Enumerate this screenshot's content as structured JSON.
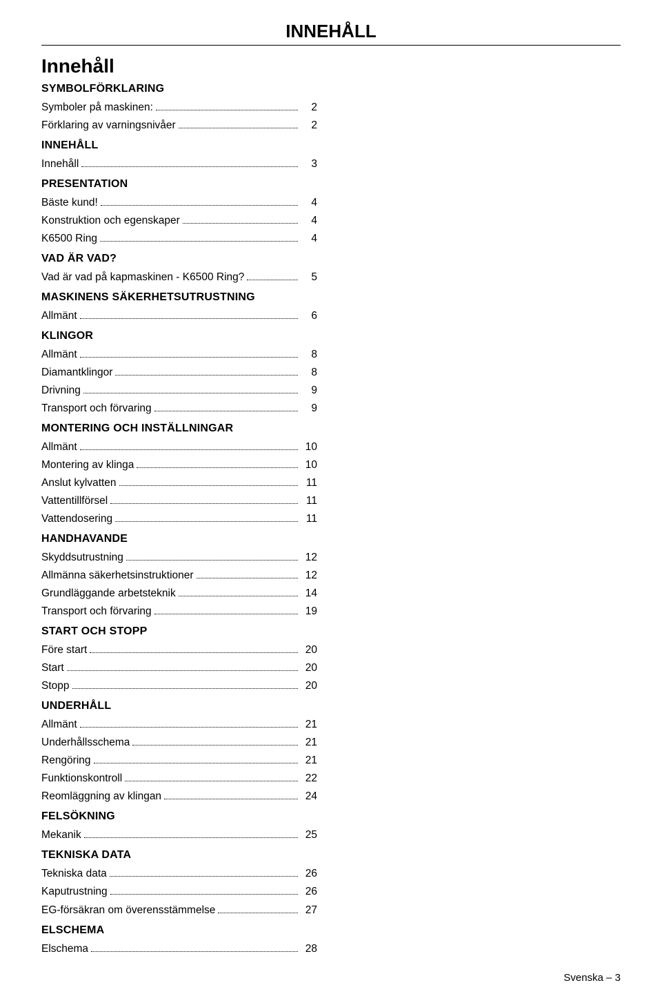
{
  "page_title": "INNEHÅLL",
  "main_heading": "Innehåll",
  "footer": {
    "text": "Svenska",
    "page": "3",
    "separator": "–"
  },
  "colors": {
    "text": "#000000",
    "background": "#ffffff",
    "rule": "#000000"
  },
  "typography": {
    "title_fontsize": 26,
    "main_heading_fontsize": 28,
    "section_fontsize": 16,
    "entry_fontsize": 15.5,
    "footer_fontsize": 15,
    "font_family": "Arial"
  },
  "sections": [
    {
      "heading": "SYMBOLFÖRKLARING",
      "entries": [
        {
          "label": "Symboler på maskinen:",
          "page": "2"
        },
        {
          "label": "Förklaring av varningsnivåer",
          "page": "2"
        }
      ]
    },
    {
      "heading": "INNEHÅLL",
      "entries": [
        {
          "label": "Innehåll",
          "page": "3"
        }
      ]
    },
    {
      "heading": "PRESENTATION",
      "entries": [
        {
          "label": "Bäste kund!",
          "page": "4"
        },
        {
          "label": "Konstruktion och egenskaper",
          "page": "4"
        },
        {
          "label": "K6500 Ring",
          "page": "4"
        }
      ]
    },
    {
      "heading": "VAD ÄR VAD?",
      "entries": [
        {
          "label": "Vad är vad på kapmaskinen - K6500 Ring?",
          "page": "5"
        }
      ]
    },
    {
      "heading": "MASKINENS SÄKERHETSUTRUSTNING",
      "entries": [
        {
          "label": "Allmänt",
          "page": "6"
        }
      ]
    },
    {
      "heading": "KLINGOR",
      "entries": [
        {
          "label": "Allmänt",
          "page": "8"
        },
        {
          "label": "Diamantklingor",
          "page": "8"
        },
        {
          "label": "Drivning",
          "page": "9"
        },
        {
          "label": "Transport och förvaring",
          "page": "9"
        }
      ]
    },
    {
      "heading": "MONTERING OCH INSTÄLLNINGAR",
      "entries": [
        {
          "label": "Allmänt",
          "page": "10"
        },
        {
          "label": "Montering av klinga",
          "page": "10"
        },
        {
          "label": "Anslut kylvatten",
          "page": "11"
        },
        {
          "label": "Vattentillförsel",
          "page": "11"
        },
        {
          "label": "Vattendosering",
          "page": "11"
        }
      ]
    },
    {
      "heading": "HANDHAVANDE",
      "entries": [
        {
          "label": "Skyddsutrustning",
          "page": "12"
        },
        {
          "label": "Allmänna säkerhetsinstruktioner",
          "page": "12"
        },
        {
          "label": "Grundläggande arbetsteknik",
          "page": "14"
        },
        {
          "label": "Transport och förvaring",
          "page": "19"
        }
      ]
    },
    {
      "heading": "START OCH STOPP",
      "entries": [
        {
          "label": "Före start",
          "page": "20"
        },
        {
          "label": "Start",
          "page": "20"
        },
        {
          "label": "Stopp",
          "page": "20"
        }
      ]
    },
    {
      "heading": "UNDERHÅLL",
      "entries": [
        {
          "label": "Allmänt",
          "page": "21"
        },
        {
          "label": "Underhållsschema",
          "page": "21"
        },
        {
          "label": "Rengöring",
          "page": "21"
        },
        {
          "label": "Funktionskontroll",
          "page": "22"
        },
        {
          "label": "Reomläggning av klingan",
          "page": "24"
        }
      ]
    },
    {
      "heading": "FELSÖKNING",
      "entries": [
        {
          "label": "Mekanik",
          "page": "25"
        }
      ]
    },
    {
      "heading": "TEKNISKA DATA",
      "entries": [
        {
          "label": "Tekniska data",
          "page": "26"
        },
        {
          "label": "Kaputrustning",
          "page": "26"
        },
        {
          "label": "EG-försäkran om överensstämmelse",
          "page": "27"
        }
      ]
    },
    {
      "heading": "ELSCHEMA",
      "entries": [
        {
          "label": "Elschema",
          "page": "28"
        }
      ]
    }
  ]
}
